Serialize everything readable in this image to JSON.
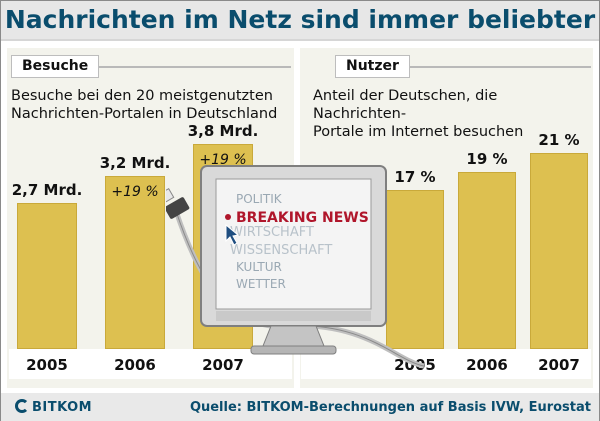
{
  "headline": "Nachrichten im Netz sind immer beliebter",
  "left": {
    "label": "Besuche",
    "subtitle_line1": "Besuche bei den 20 meistgenutzten",
    "subtitle_line2": "Nachrichten-Portalen in Deutschland"
  },
  "right": {
    "label": "Nutzer",
    "subtitle_line1": "Anteil der Deutschen, die Nachrichten-",
    "subtitle_line2": "Portale im Internet besuchen"
  },
  "screen": {
    "items": [
      "POLITIK",
      "WIRTSCHAFT",
      "WISSENSCHAFT",
      "KULTUR",
      "WETTER"
    ],
    "breaking": "BREAKING NEWS"
  },
  "footer": {
    "brand": "BITKOM",
    "source": "Quelle: BITKOM-Berechnungen auf Basis IVW, Eurostat"
  },
  "colors": {
    "bar": "#ddc050",
    "panel": "#f3f3ec",
    "title": "#0a4d6d",
    "breaking": "#b0162b"
  },
  "chart_data": [
    {
      "type": "bar",
      "categories": [
        "2005",
        "2006",
        "2007"
      ],
      "values": [
        2.7,
        3.2,
        3.8
      ],
      "value_labels": [
        "2,7 Mrd.",
        "3,2 Mrd.",
        "3,8 Mrd."
      ],
      "growth_labels": [
        "",
        "+19 %",
        "+19 %"
      ],
      "unit": "Mrd.",
      "ylim": [
        0,
        3.8
      ],
      "grid": false
    },
    {
      "type": "bar",
      "categories": [
        "2005",
        "2006",
        "2007"
      ],
      "values": [
        17,
        19,
        21
      ],
      "value_labels": [
        "17 %",
        "19 %",
        "21 %"
      ],
      "unit": "%",
      "ylim": [
        0,
        21
      ],
      "grid": false
    }
  ]
}
